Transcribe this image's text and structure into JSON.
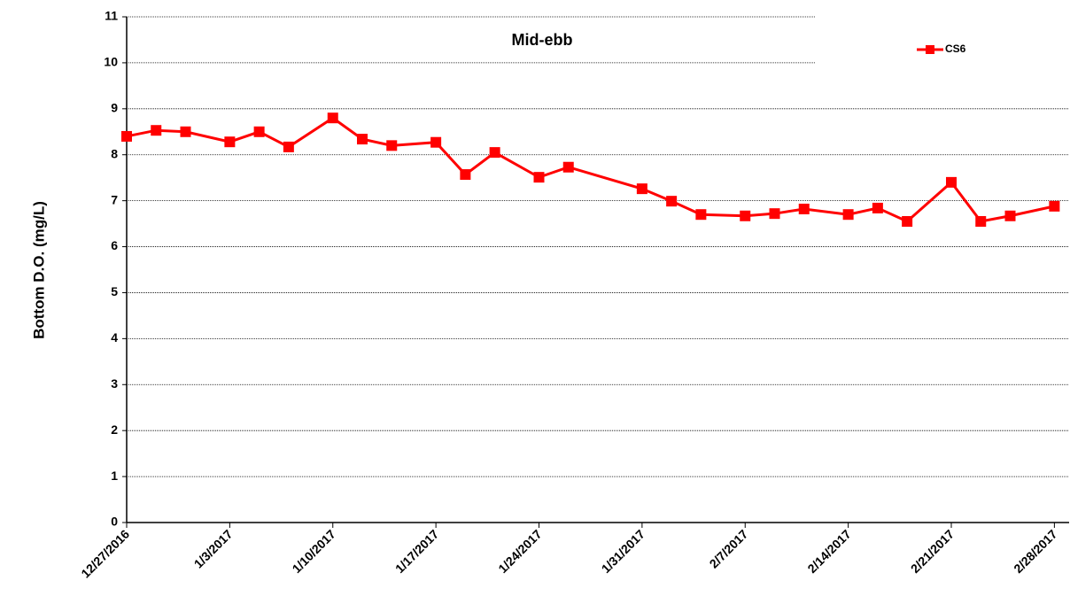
{
  "chart_data": {
    "type": "line",
    "title": "Mid-ebb",
    "y_label": "Bottom D.O. (mg/L)",
    "x": [
      "12/27/2016",
      "12/29/2016",
      "12/31/2016",
      "1/3/2017",
      "1/5/2017",
      "1/7/2017",
      "1/10/2017",
      "1/12/2017",
      "1/14/2017",
      "1/17/2017",
      "1/19/2017",
      "1/21/2017",
      "1/24/2017",
      "1/26/2017",
      "1/31/2017",
      "2/2/2017",
      "2/4/2017",
      "2/7/2017",
      "2/9/2017",
      "2/11/2017",
      "2/14/2017",
      "2/16/2017",
      "2/18/2017",
      "2/21/2017",
      "2/23/2017",
      "2/25/2017",
      "2/28/2017"
    ],
    "series": [
      {
        "name": "CS6",
        "color": "#ff0000",
        "values": [
          8.4,
          8.53,
          8.5,
          8.28,
          8.5,
          8.17,
          8.8,
          8.34,
          8.2,
          8.27,
          7.57,
          8.05,
          7.51,
          7.73,
          7.26,
          6.99,
          6.7,
          6.67,
          6.72,
          6.82,
          6.7,
          6.84,
          6.55,
          7.4,
          6.55,
          6.67,
          6.88
        ]
      }
    ],
    "xlim": [
      "12/27/2016",
      "3/1/2017"
    ],
    "xticks": [
      "12/27/2016",
      "1/3/2017",
      "1/10/2017",
      "1/17/2017",
      "1/24/2017",
      "1/31/2017",
      "2/7/2017",
      "2/14/2017",
      "2/21/2017",
      "2/28/2017"
    ],
    "ylim": [
      0,
      11
    ],
    "yticks": [
      0,
      1,
      2,
      3,
      4,
      5,
      6,
      7,
      8,
      9,
      10,
      11
    ],
    "grid": true,
    "legend": "upper right"
  }
}
